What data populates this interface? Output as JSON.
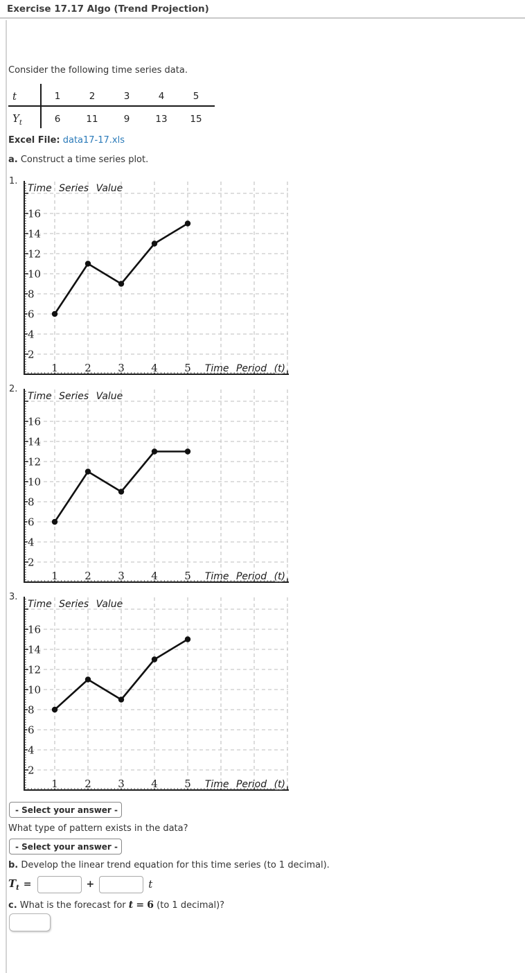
{
  "window": {
    "title": "Exercise 17.17 Algo (Trend Projection)"
  },
  "intro_text": "Consider the following time series data.",
  "data_table": {
    "row_t_label": "t",
    "row_y_label": "Y",
    "row_y_sub": "t",
    "t_values": [
      "1",
      "2",
      "3",
      "4",
      "5"
    ],
    "y_values": [
      "6",
      "11",
      "9",
      "13",
      "15"
    ]
  },
  "excel_file": {
    "label": "Excel File:",
    "filename": "data17-17.xls"
  },
  "part_a": {
    "marker": "a.",
    "text": "Construct a time series plot."
  },
  "plots": {
    "items": [
      {
        "number": "1."
      },
      {
        "number": "2."
      },
      {
        "number": "3."
      }
    ]
  },
  "chart_data": [
    {
      "type": "line",
      "title": "Time Series Value",
      "xlabel": "Time Period (t)",
      "x": [
        1,
        2,
        3,
        4,
        5
      ],
      "y": [
        6,
        11,
        9,
        13,
        15
      ],
      "xticks": [
        1,
        2,
        3,
        4,
        5
      ],
      "yticks": [
        2,
        4,
        6,
        8,
        10,
        12,
        14,
        16
      ],
      "xlim": [
        0,
        8
      ],
      "ylim": [
        0,
        19.2
      ],
      "grid": true,
      "grid_style": "dashed",
      "marker": "circle",
      "line_color": "#111111",
      "grid_color": "#c9c9c9"
    },
    {
      "type": "line",
      "title": "Time Series Value",
      "xlabel": "Time Period (t)",
      "x": [
        1,
        2,
        3,
        4,
        5
      ],
      "y": [
        6,
        11,
        9,
        13,
        13
      ],
      "xticks": [
        1,
        2,
        3,
        4,
        5
      ],
      "yticks": [
        2,
        4,
        6,
        8,
        10,
        12,
        14,
        16
      ],
      "xlim": [
        0,
        8
      ],
      "ylim": [
        0,
        19.2
      ],
      "grid": true,
      "grid_style": "dashed",
      "marker": "circle",
      "line_color": "#111111",
      "grid_color": "#c9c9c9"
    },
    {
      "type": "line",
      "title": "Time Series Value",
      "xlabel": "Time Period (t)",
      "x": [
        1,
        2,
        3,
        4,
        5
      ],
      "y": [
        8,
        11,
        9,
        13,
        15
      ],
      "xticks": [
        1,
        2,
        3,
        4,
        5
      ],
      "yticks": [
        2,
        4,
        6,
        8,
        10,
        12,
        14,
        16
      ],
      "xlim": [
        0,
        8
      ],
      "ylim": [
        0,
        19.2
      ],
      "grid": true,
      "grid_style": "dashed",
      "marker": "circle",
      "line_color": "#111111",
      "grid_color": "#c9c9c9"
    }
  ],
  "pattern_section": {
    "select_placeholder": "- Select your answer -",
    "question": "What type of pattern exists in the data?"
  },
  "part_b": {
    "marker": "b.",
    "text": "Develop the linear trend equation for this time series (to 1 decimal)."
  },
  "equation": {
    "lhs_base": "T",
    "lhs_sub": "t",
    "equals": "=",
    "plus": "+",
    "t_suffix": "t"
  },
  "part_c": {
    "marker": "c.",
    "text_before": "What is the forecast for",
    "math_var": "t",
    "math_equals": "=",
    "math_value": "6",
    "text_after": "(to 1 decimal)?"
  }
}
